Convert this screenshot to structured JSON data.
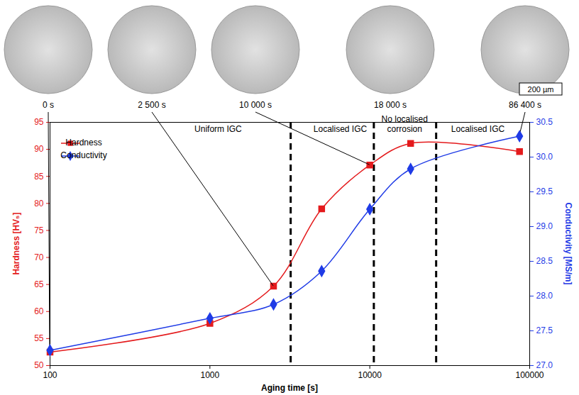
{
  "chart_data": {
    "type": "line",
    "xlabel": "Aging time [s]",
    "ylabel": "Hardness [HV₅]",
    "y2label": "Conductivity [MS/m]",
    "log": "x",
    "grid": false,
    "legend": "top-left",
    "x": [
      100,
      1000,
      2500,
      5000,
      10000,
      18000,
      86400
    ],
    "xlim": [
      100,
      100000
    ],
    "xticks": [
      100,
      1000,
      10000,
      100000
    ],
    "ylim": [
      50,
      95
    ],
    "yticks": [
      50,
      55,
      60,
      65,
      70,
      75,
      80,
      85,
      90,
      95
    ],
    "y2lim": [
      27,
      30.5
    ],
    "y2ticks": [
      {
        "value": 27,
        "label": "27.0"
      },
      27.5,
      {
        "value": 28,
        "label": "28.0"
      },
      28.5,
      {
        "value": 29,
        "label": "29.0"
      },
      29.5,
      {
        "value": 30,
        "label": "30.0"
      },
      30.5
    ],
    "series": [
      {
        "name": "Hardness",
        "color": "#e41a1c",
        "marker": "square",
        "values": [
          52.5,
          57.8,
          64.7,
          79,
          87.1,
          91.1,
          89.6
        ]
      },
      {
        "name": "Conductivity",
        "color": "#1f3be6",
        "marker": "diamond",
        "axis": "y2",
        "values": [
          27.22,
          27.68,
          27.88,
          28.36,
          29.25,
          29.83,
          30.3
        ]
      }
    ],
    "region_boundaries": [
      3200,
      10600,
      26000
    ],
    "regions": [
      "Uniform IGC",
      "Localised IGC",
      "No localised corrosion",
      "Localised IGC"
    ],
    "micrographs": [
      {
        "label": "0 s",
        "x": 100,
        "series": "Hardness"
      },
      {
        "label": "2 500 s",
        "x": 2500,
        "series": "Hardness"
      },
      {
        "label": "10 000 s",
        "x": 10000,
        "series": "Hardness"
      },
      {
        "label": "18 000 s",
        "x": 18000,
        "series": null
      },
      {
        "label": "86 400 s",
        "x": 86400,
        "series": "Conductivity"
      }
    ],
    "scale_bar": "200 µm"
  }
}
